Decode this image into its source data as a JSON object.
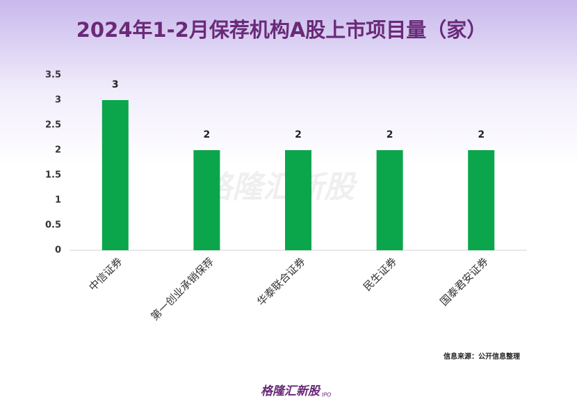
{
  "chart_data": {
    "type": "bar",
    "title": "2024年1-2月保荐机构A股上市项目量（家）",
    "categories": [
      "中信证券",
      "第一创业承销保荐",
      "华泰联合证券",
      "民生证券",
      "国泰君安证券"
    ],
    "values": [
      3,
      2,
      2,
      2,
      2
    ],
    "color": "#0ba64b",
    "ylim": [
      0,
      3.5
    ],
    "yticks": [
      0,
      0.5,
      1,
      1.5,
      2,
      2.5,
      3,
      3.5
    ],
    "grid": false,
    "source": "信息来源：公开信息整理",
    "watermark": "格隆汇新股",
    "logo": "格隆汇新股",
    "logo_sub": "IPO"
  }
}
